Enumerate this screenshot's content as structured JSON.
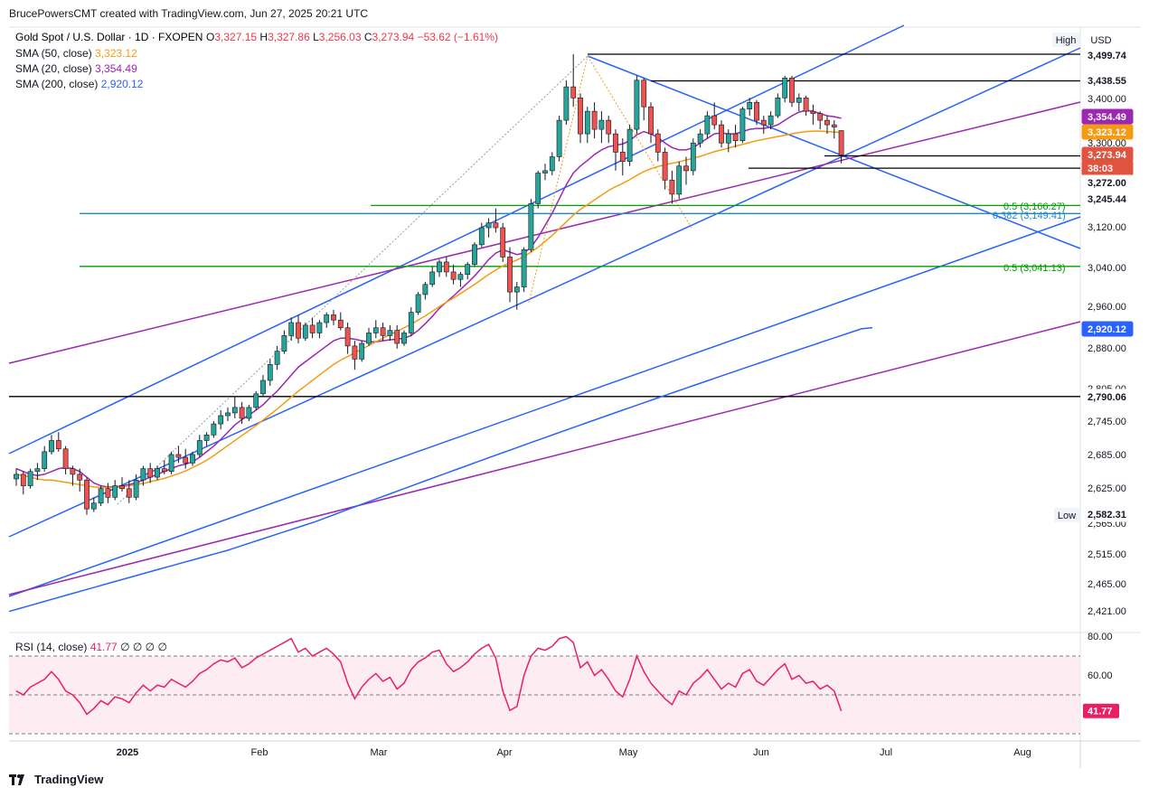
{
  "header": {
    "credit": "BrucePowersCMT created with TradingView.com, Jun 27, 2025 20:21 UTC"
  },
  "footer": {
    "brand": "TradingView"
  },
  "legend": {
    "main": "Gold Spot / U.S. Dollar · 1D · FXOPEN",
    "ohlc": [
      {
        "label": "O",
        "value": "3,327.15"
      },
      {
        "label": "H",
        "value": "3,327.86"
      },
      {
        "label": "L",
        "value": "3,256.03"
      },
      {
        "label": "C",
        "value": "3,273.94"
      }
    ],
    "change": "−53.62 (−1.61%)",
    "sma": [
      {
        "label": "SMA (50, close)",
        "value": "3,323.12",
        "color": "#f59b13"
      },
      {
        "label": "SMA (20, close)",
        "value": "3,354.49",
        "color": "#9c27b0"
      },
      {
        "label": "SMA (200, close)",
        "value": "2,920.12",
        "color": "#2962ff"
      }
    ]
  },
  "buttons": {
    "high": "High",
    "low": "Low",
    "currency": "USD"
  },
  "price_axis_ticks": [
    "3,400.00",
    "3,300.00",
    "3,120.00",
    "3,040.00",
    "2,960.00",
    "2,880.00",
    "2,805.00",
    "2,745.00",
    "2,685.00",
    "2,625.00",
    "2,565.00",
    "2,515.00",
    "2,465.00",
    "2,421.00"
  ],
  "price_labels": [
    {
      "text": "3,499.74",
      "bg": "#ffffff",
      "fg": "#131722"
    },
    {
      "text": "3,438.55",
      "bg": "#ffffff",
      "fg": "#131722"
    },
    {
      "text": "3,354.49",
      "bg": "#9c27b0",
      "fg": "#ffffff"
    },
    {
      "text": "3,323.12",
      "bg": "#f59b13",
      "fg": "#ffffff"
    },
    {
      "text": "3,273.94",
      "bg": "#e0533f",
      "fg": "#ffffff"
    },
    {
      "text": "38:03",
      "bg": "#e0533f",
      "fg": "#ffffff"
    },
    {
      "text": "3,272.00",
      "bg": "#ffffff",
      "fg": "#131722"
    },
    {
      "text": "3,245.44",
      "bg": "#ffffff",
      "fg": "#131722"
    },
    {
      "text": "2,920.12",
      "bg": "#2962ff",
      "fg": "#ffffff"
    },
    {
      "text": "2,790.06",
      "bg": "#ffffff",
      "fg": "#131722"
    },
    {
      "text": "2,582.31",
      "bg": "#ffffff",
      "fg": "#131722"
    }
  ],
  "fib_labels": [
    {
      "text": "0.5 (3,166.27)",
      "color": "#00a000"
    },
    {
      "text": "0.382 (3,149.41)",
      "color": "#1e88c8"
    },
    {
      "text": "0.5 (3,041.13)",
      "color": "#00a000"
    }
  ],
  "rsi": {
    "title": "RSI (14, close)",
    "value": "41.77",
    "extra": [
      "∅",
      "∅",
      "∅",
      "∅"
    ],
    "axis_ticks": [
      "80.00",
      "60.00"
    ],
    "color": "#e91e63"
  },
  "time_axis": [
    "2025",
    "Feb",
    "Mar",
    "Apr",
    "May",
    "Jun",
    "Jul",
    "Aug"
  ],
  "chart_data": {
    "type": "candlestick",
    "symbol": "XAUUSD",
    "timeframe": "1D",
    "ylim": [
      2400,
      3540
    ],
    "candles_ohlc": [
      [
        2642,
        2660,
        2630,
        2650
      ],
      [
        2650,
        2655,
        2615,
        2630
      ],
      [
        2630,
        2660,
        2625,
        2655
      ],
      [
        2655,
        2670,
        2640,
        2660
      ],
      [
        2660,
        2700,
        2655,
        2690
      ],
      [
        2690,
        2720,
        2685,
        2710
      ],
      [
        2710,
        2725,
        2690,
        2695
      ],
      [
        2695,
        2700,
        2650,
        2660
      ],
      [
        2660,
        2665,
        2630,
        2650
      ],
      [
        2650,
        2660,
        2620,
        2640
      ],
      [
        2640,
        2645,
        2580,
        2590
      ],
      [
        2590,
        2610,
        2585,
        2600
      ],
      [
        2600,
        2630,
        2595,
        2625
      ],
      [
        2625,
        2635,
        2600,
        2610
      ],
      [
        2610,
        2640,
        2605,
        2630
      ],
      [
        2630,
        2645,
        2620,
        2625
      ],
      [
        2625,
        2640,
        2600,
        2610
      ],
      [
        2610,
        2650,
        2605,
        2640
      ],
      [
        2640,
        2665,
        2630,
        2660
      ],
      [
        2660,
        2670,
        2635,
        2645
      ],
      [
        2645,
        2665,
        2640,
        2660
      ],
      [
        2660,
        2675,
        2650,
        2655
      ],
      [
        2655,
        2690,
        2650,
        2685
      ],
      [
        2685,
        2700,
        2670,
        2680
      ],
      [
        2680,
        2695,
        2660,
        2670
      ],
      [
        2670,
        2690,
        2665,
        2685
      ],
      [
        2685,
        2720,
        2680,
        2710
      ],
      [
        2710,
        2725,
        2700,
        2720
      ],
      [
        2720,
        2745,
        2715,
        2740
      ],
      [
        2740,
        2765,
        2730,
        2755
      ],
      [
        2755,
        2770,
        2745,
        2760
      ],
      [
        2760,
        2790,
        2750,
        2770
      ],
      [
        2770,
        2780,
        2740,
        2750
      ],
      [
        2750,
        2775,
        2745,
        2770
      ],
      [
        2770,
        2800,
        2765,
        2795
      ],
      [
        2795,
        2830,
        2790,
        2820
      ],
      [
        2820,
        2860,
        2810,
        2850
      ],
      [
        2850,
        2885,
        2840,
        2875
      ],
      [
        2875,
        2915,
        2870,
        2905
      ],
      [
        2905,
        2940,
        2895,
        2930
      ],
      [
        2930,
        2945,
        2890,
        2900
      ],
      [
        2900,
        2930,
        2895,
        2925
      ],
      [
        2925,
        2940,
        2900,
        2910
      ],
      [
        2910,
        2935,
        2900,
        2930
      ],
      [
        2930,
        2950,
        2920,
        2945
      ],
      [
        2945,
        2955,
        2925,
        2935
      ],
      [
        2935,
        2950,
        2915,
        2920
      ],
      [
        2920,
        2930,
        2870,
        2885
      ],
      [
        2885,
        2895,
        2840,
        2860
      ],
      [
        2860,
        2895,
        2855,
        2890
      ],
      [
        2890,
        2920,
        2885,
        2910
      ],
      [
        2910,
        2935,
        2900,
        2920
      ],
      [
        2920,
        2930,
        2895,
        2905
      ],
      [
        2905,
        2925,
        2895,
        2915
      ],
      [
        2915,
        2925,
        2880,
        2890
      ],
      [
        2890,
        2915,
        2885,
        2910
      ],
      [
        2910,
        2960,
        2905,
        2950
      ],
      [
        2950,
        2990,
        2945,
        2985
      ],
      [
        2985,
        3010,
        2975,
        3005
      ],
      [
        3005,
        3040,
        3000,
        3030
      ],
      [
        3030,
        3055,
        3020,
        3050
      ],
      [
        3050,
        3060,
        3020,
        3030
      ],
      [
        3030,
        3045,
        3005,
        3015
      ],
      [
        3015,
        3030,
        3000,
        3025
      ],
      [
        3025,
        3050,
        3015,
        3045
      ],
      [
        3045,
        3090,
        3040,
        3085
      ],
      [
        3085,
        3130,
        3080,
        3120
      ],
      [
        3120,
        3140,
        3100,
        3130
      ],
      [
        3130,
        3160,
        3110,
        3120
      ],
      [
        3120,
        3130,
        3050,
        3060
      ],
      [
        3060,
        3080,
        2970,
        2990
      ],
      [
        2990,
        3010,
        2955,
        3000
      ],
      [
        3000,
        3080,
        2990,
        3075
      ],
      [
        3075,
        3180,
        3070,
        3170
      ],
      [
        3170,
        3240,
        3160,
        3235
      ],
      [
        3235,
        3255,
        3220,
        3240
      ],
      [
        3240,
        3280,
        3230,
        3270
      ],
      [
        3270,
        3360,
        3260,
        3350
      ],
      [
        3350,
        3440,
        3340,
        3425
      ],
      [
        3425,
        3500,
        3380,
        3400
      ],
      [
        3400,
        3410,
        3300,
        3320
      ],
      [
        3320,
        3380,
        3300,
        3370
      ],
      [
        3370,
        3390,
        3310,
        3330
      ],
      [
        3330,
        3370,
        3300,
        3350
      ],
      [
        3350,
        3360,
        3300,
        3320
      ],
      [
        3320,
        3330,
        3240,
        3280
      ],
      [
        3280,
        3310,
        3230,
        3260
      ],
      [
        3260,
        3340,
        3250,
        3330
      ],
      [
        3330,
        3450,
        3320,
        3440
      ],
      [
        3440,
        3445,
        3350,
        3380
      ],
      [
        3380,
        3390,
        3300,
        3320
      ],
      [
        3320,
        3330,
        3260,
        3280
      ],
      [
        3280,
        3290,
        3200,
        3220
      ],
      [
        3220,
        3240,
        3170,
        3190
      ],
      [
        3190,
        3260,
        3180,
        3250
      ],
      [
        3250,
        3270,
        3210,
        3240
      ],
      [
        3240,
        3310,
        3230,
        3300
      ],
      [
        3300,
        3330,
        3290,
        3320
      ],
      [
        3320,
        3370,
        3310,
        3360
      ],
      [
        3360,
        3390,
        3330,
        3340
      ],
      [
        3340,
        3350,
        3290,
        3300
      ],
      [
        3300,
        3330,
        3280,
        3320
      ],
      [
        3320,
        3340,
        3290,
        3305
      ],
      [
        3305,
        3380,
        3300,
        3375
      ],
      [
        3375,
        3400,
        3360,
        3390
      ],
      [
        3390,
        3395,
        3340,
        3350
      ],
      [
        3350,
        3360,
        3320,
        3340
      ],
      [
        3340,
        3370,
        3330,
        3360
      ],
      [
        3360,
        3410,
        3355,
        3400
      ],
      [
        3400,
        3450,
        3390,
        3445
      ],
      [
        3445,
        3450,
        3380,
        3390
      ],
      [
        3390,
        3410,
        3370,
        3400
      ],
      [
        3400,
        3405,
        3360,
        3370
      ],
      [
        3370,
        3385,
        3340,
        3365
      ],
      [
        3365,
        3370,
        3330,
        3350
      ],
      [
        3350,
        3360,
        3320,
        3340
      ],
      [
        3340,
        3350,
        3310,
        3335
      ],
      [
        3327.15,
        3327.86,
        3256.03,
        3273.94
      ]
    ],
    "sma20": [
      2660,
      2655,
      2650,
      2648,
      2650,
      2655,
      2660,
      2662,
      2660,
      2655,
      2645,
      2635,
      2630,
      2628,
      2628,
      2630,
      2632,
      2635,
      2640,
      2645,
      2650,
      2655,
      2660,
      2665,
      2668,
      2672,
      2680,
      2690,
      2700,
      2712,
      2725,
      2738,
      2748,
      2756,
      2765,
      2775,
      2788,
      2800,
      2815,
      2830,
      2845,
      2855,
      2865,
      2875,
      2885,
      2895,
      2900,
      2900,
      2898,
      2895,
      2893,
      2893,
      2895,
      2897,
      2898,
      2900,
      2905,
      2915,
      2928,
      2942,
      2958,
      2970,
      2982,
      2995,
      3008,
      3022,
      3038,
      3055,
      3068,
      3075,
      3070,
      3065,
      3068,
      3080,
      3100,
      3125,
      3150,
      3180,
      3210,
      3235,
      3250,
      3262,
      3275,
      3285,
      3292,
      3295,
      3298,
      3305,
      3318,
      3325,
      3320,
      3312,
      3300,
      3290,
      3285,
      3285,
      3290,
      3300,
      3310,
      3320,
      3322,
      3320,
      3320,
      3325,
      3330,
      3332,
      3332,
      3335,
      3340,
      3350,
      3360,
      3368,
      3372,
      3370,
      3365,
      3360,
      3358,
      3354.49
    ],
    "sma50": [
      2650,
      2648,
      2645,
      2642,
      2640,
      2640,
      2638,
      2636,
      2634,
      2632,
      2630,
      2628,
      2627,
      2627,
      2627,
      2628,
      2630,
      2632,
      2634,
      2637,
      2640,
      2643,
      2647,
      2651,
      2656,
      2662,
      2668,
      2675,
      2683,
      2692,
      2701,
      2710,
      2719,
      2728,
      2737,
      2747,
      2757,
      2767,
      2778,
      2789,
      2800,
      2810,
      2820,
      2830,
      2840,
      2850,
      2858,
      2865,
      2872,
      2879,
      2886,
      2893,
      2900,
      2907,
      2913,
      2920,
      2927,
      2935,
      2943,
      2952,
      2961,
      2970,
      2978,
      2987,
      2996,
      3005,
      3015,
      3025,
      3034,
      3042,
      3048,
      3054,
      3061,
      3070,
      3080,
      3092,
      3104,
      3118,
      3132,
      3146,
      3158,
      3168,
      3178,
      3188,
      3198,
      3206,
      3213,
      3221,
      3230,
      3238,
      3244,
      3249,
      3253,
      3256,
      3259,
      3263,
      3267,
      3271,
      3276,
      3281,
      3285,
      3289,
      3293,
      3297,
      3301,
      3305,
      3308,
      3311,
      3314,
      3317,
      3320,
      3323,
      3325,
      3326,
      3326,
      3325,
      3324,
      3323.12
    ],
    "sma200": [
      2420,
      2425,
      2430,
      2435,
      2440,
      2445,
      2450,
      2455,
      2460,
      2465,
      2470,
      2475,
      2480,
      2485,
      2490,
      2495,
      2500,
      2505,
      2510,
      2515,
      2520,
      2526,
      2532,
      2538,
      2544,
      2550,
      2556,
      2562,
      2568,
      2575,
      2582,
      2589,
      2596,
      2603,
      2610,
      2617,
      2624,
      2631,
      2638,
      2645,
      2652,
      2659,
      2666,
      2673,
      2680,
      2687,
      2694,
      2701,
      2708,
      2715,
      2722,
      2729,
      2736,
      2743,
      2750,
      2757,
      2764,
      2771,
      2778,
      2785,
      2792,
      2799,
      2806,
      2813,
      2820,
      2827,
      2834,
      2841,
      2848,
      2855,
      2862,
      2869,
      2876,
      2883,
      2890,
      2897,
      2904,
      2911,
      2918,
      2920.12
    ],
    "rsi14": [
      52,
      50,
      54,
      56,
      58,
      62,
      58,
      52,
      50,
      46,
      40,
      43,
      47,
      45,
      49,
      48,
      46,
      51,
      55,
      52,
      55,
      54,
      58,
      56,
      54,
      57,
      61,
      63,
      66,
      68,
      67,
      69,
      64,
      66,
      69,
      71,
      73,
      75,
      77,
      79,
      72,
      74,
      70,
      72,
      74,
      71,
      67,
      56,
      48,
      54,
      58,
      61,
      57,
      59,
      53,
      56,
      63,
      67,
      69,
      72,
      73,
      66,
      62,
      64,
      67,
      71,
      74,
      76,
      69,
      52,
      42,
      44,
      60,
      70,
      74,
      73,
      75,
      79,
      80,
      77,
      64,
      67,
      60,
      63,
      58,
      52,
      49,
      58,
      70,
      62,
      56,
      52,
      48,
      45,
      52,
      50,
      56,
      59,
      63,
      58,
      53,
      56,
      54,
      61,
      63,
      57,
      55,
      59,
      63,
      66,
      58,
      60,
      56,
      57,
      53,
      55,
      52,
      41.77
    ],
    "horizontal_levels": [
      {
        "price": 3499.74,
        "color": "#000000",
        "label": "3,499.74"
      },
      {
        "price": 3438.55,
        "color": "#000000",
        "label": "3,438.55"
      },
      {
        "price": 3272.0,
        "color": "#000000",
        "label": "3,272.00"
      },
      {
        "price": 3245.44,
        "color": "#000000",
        "label": "3,245.44"
      },
      {
        "price": 3166.27,
        "color": "#00a000",
        "label": "0.5 (3,166.27)"
      },
      {
        "price": 3149.41,
        "color": "#1e88c8",
        "label": "0.382 (3,149.41)"
      },
      {
        "price": 3041.13,
        "color": "#00a000",
        "label": "0.5 (3,041.13)"
      },
      {
        "price": 2790.06,
        "color": "#000000",
        "label": "2,790.06"
      }
    ],
    "rsi_levels": [
      70,
      50,
      30
    ],
    "rsi_ylim": [
      25,
      85
    ]
  }
}
